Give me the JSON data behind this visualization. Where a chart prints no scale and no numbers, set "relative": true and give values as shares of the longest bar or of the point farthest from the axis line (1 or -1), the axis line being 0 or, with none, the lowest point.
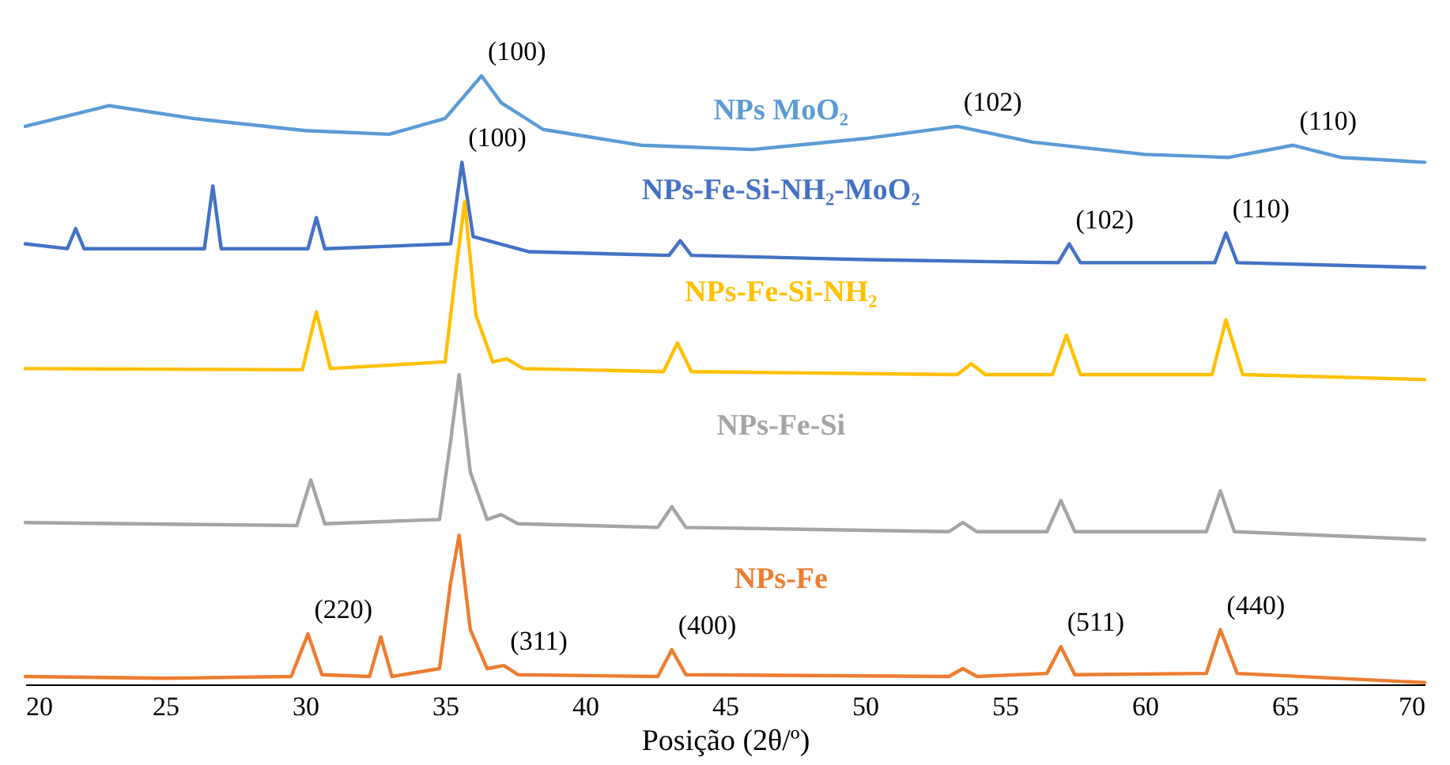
{
  "chart_data": {
    "type": "line",
    "relative": true,
    "xlabel": "Posição (2θ/º)",
    "xlim": [
      20,
      70
    ],
    "xticks": [
      20,
      25,
      30,
      35,
      40,
      45,
      50,
      55,
      60,
      65,
      70
    ],
    "tick_labels": "x",
    "line_style": "solid",
    "marker": "none",
    "series": [
      {
        "name": "NPs MoO₂",
        "color": "#5b9bd5",
        "x": [
          20,
          23,
          26,
          30,
          33,
          35,
          36.3,
          37,
          38.5,
          42,
          46,
          50,
          53.3,
          56,
          60,
          63,
          65.3,
          67,
          70
        ],
        "values": [
          0.917,
          0.951,
          0.93,
          0.91,
          0.904,
          0.93,
          1,
          0.956,
          0.912,
          0.886,
          0.879,
          0.897,
          0.917,
          0.891,
          0.871,
          0.866,
          0.886,
          0.866,
          0.858
        ]
      },
      {
        "name": "NPs-Fe-Si-NH₂-MoO₂",
        "color": "#4472c4",
        "x": [
          20,
          21.5,
          21.8,
          22.1,
          26.4,
          26.7,
          27,
          30.1,
          30.4,
          30.7,
          35.2,
          35.6,
          36,
          38,
          43,
          43.4,
          43.8,
          50,
          56.9,
          57.3,
          57.7,
          62.5,
          62.9,
          63.3,
          70
        ],
        "values": [
          0.724,
          0.716,
          0.749,
          0.716,
          0.716,
          0.819,
          0.716,
          0.716,
          0.767,
          0.716,
          0.724,
          0.858,
          0.736,
          0.711,
          0.705,
          0.729,
          0.705,
          0.698,
          0.693,
          0.724,
          0.693,
          0.693,
          0.742,
          0.693,
          0.685
        ]
      },
      {
        "name": "NPs-Fe-Si-NH₂",
        "color": "#ffc000",
        "x": [
          20,
          29.9,
          30.4,
          30.9,
          35,
          35.4,
          35.7,
          36.1,
          36.7,
          37.2,
          37.8,
          42.8,
          43.3,
          43.8,
          53.3,
          53.8,
          54.3,
          56.7,
          57.2,
          57.7,
          62.4,
          62.9,
          63.5,
          70
        ],
        "values": [
          0.519,
          0.517,
          0.612,
          0.519,
          0.53,
          0.685,
          0.793,
          0.607,
          0.53,
          0.535,
          0.519,
          0.514,
          0.561,
          0.514,
          0.509,
          0.527,
          0.509,
          0.509,
          0.574,
          0.509,
          0.509,
          0.599,
          0.509,
          0.501
        ]
      },
      {
        "name": "NPs-Fe-Si",
        "color": "#a5a5a5",
        "x": [
          20,
          29.7,
          30.2,
          30.7,
          34.8,
          35.2,
          35.5,
          35.9,
          36.5,
          37,
          37.6,
          42.6,
          43.1,
          43.6,
          53,
          53.5,
          54,
          56.5,
          57,
          57.5,
          62.2,
          62.7,
          63.2,
          70
        ],
        "values": [
          0.266,
          0.261,
          0.336,
          0.264,
          0.271,
          0.401,
          0.509,
          0.349,
          0.271,
          0.279,
          0.264,
          0.258,
          0.292,
          0.258,
          0.251,
          0.266,
          0.251,
          0.251,
          0.302,
          0.251,
          0.251,
          0.318,
          0.251,
          0.238
        ]
      },
      {
        "name": "NPs-Fe",
        "color": "#ed7d31",
        "x": [
          20,
          25,
          29.5,
          30.1,
          30.6,
          32.3,
          32.7,
          33.1,
          34.8,
          35.2,
          35.5,
          35.9,
          36.5,
          37.1,
          37.6,
          42.6,
          43.1,
          43.6,
          53,
          53.5,
          54,
          56.5,
          57,
          57.5,
          62.2,
          62.7,
          63.3,
          70
        ],
        "values": [
          0.013,
          0.01,
          0.013,
          0.083,
          0.016,
          0.013,
          0.078,
          0.013,
          0.026,
          0.168,
          0.245,
          0.09,
          0.026,
          0.031,
          0.016,
          0.013,
          0.057,
          0.016,
          0.013,
          0.026,
          0.013,
          0.018,
          0.062,
          0.016,
          0.018,
          0.09,
          0.018,
          0.003
        ]
      }
    ],
    "annotations": [
      {
        "text": "(100)",
        "x": 36.3,
        "y": 1
      },
      {
        "text": "(102)",
        "x": 53.3,
        "y": 0.917
      },
      {
        "text": "(110)",
        "x": 65.3,
        "y": 0.886
      },
      {
        "text": "(100)",
        "x": 35.6,
        "y": 0.858
      },
      {
        "text": "(102)",
        "x": 57.3,
        "y": 0.724
      },
      {
        "text": "(110)",
        "x": 62.9,
        "y": 0.742
      },
      {
        "text": "(220)",
        "x": 30.1,
        "y": 0.083
      },
      {
        "text": "(311)",
        "x": 37.1,
        "y": 0.031
      },
      {
        "text": "(400)",
        "x": 43.1,
        "y": 0.057
      },
      {
        "text": "(511)",
        "x": 57,
        "y": 0.062
      },
      {
        "text": "(440)",
        "x": 62.7,
        "y": 0.09
      }
    ]
  }
}
